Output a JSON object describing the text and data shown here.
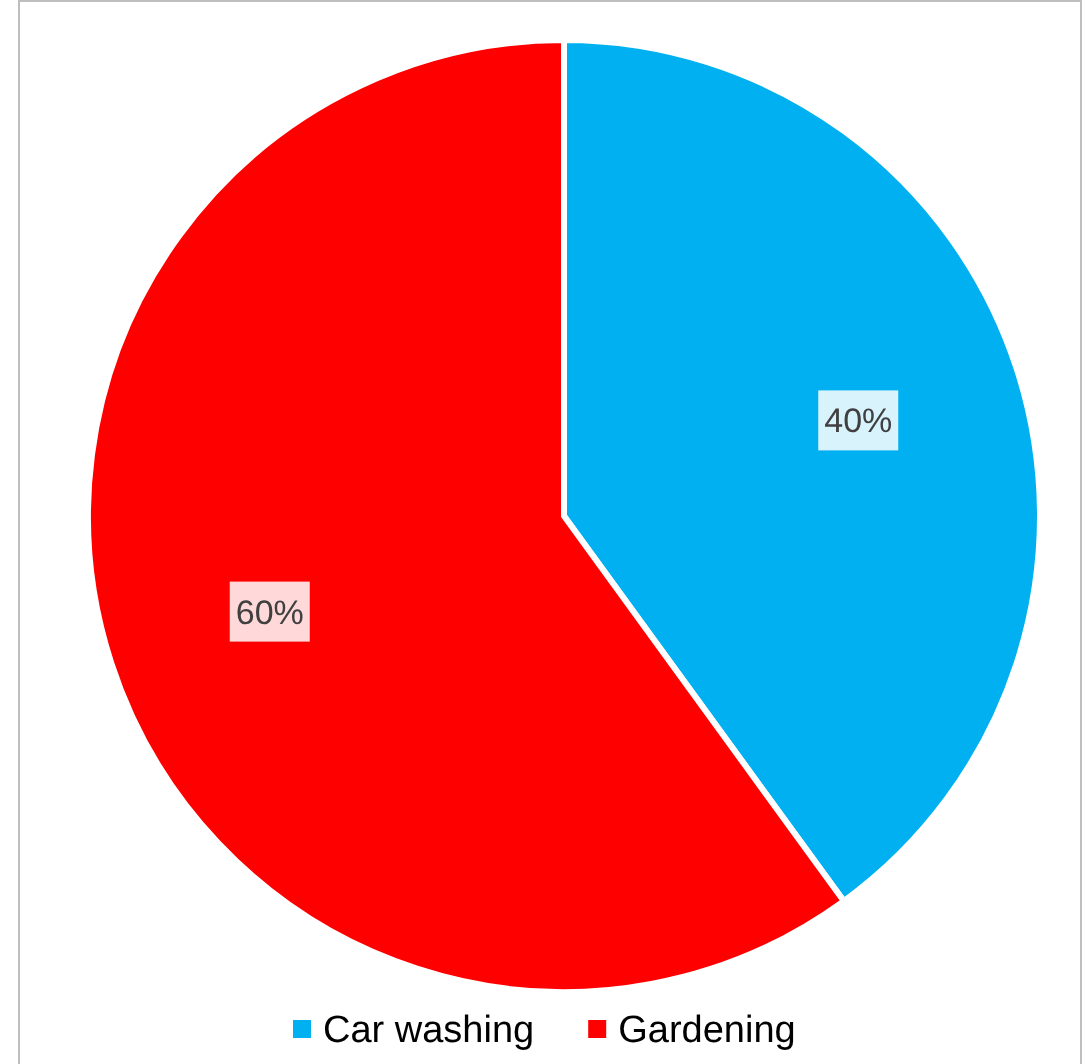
{
  "chart_data": {
    "type": "pie",
    "categories": [
      "Car washing",
      "Gardening"
    ],
    "values": [
      40,
      60
    ],
    "colors": [
      "#00b0f0",
      "#ff0000"
    ],
    "value_labels": [
      "40%",
      "60%"
    ],
    "legend": "bottom"
  }
}
